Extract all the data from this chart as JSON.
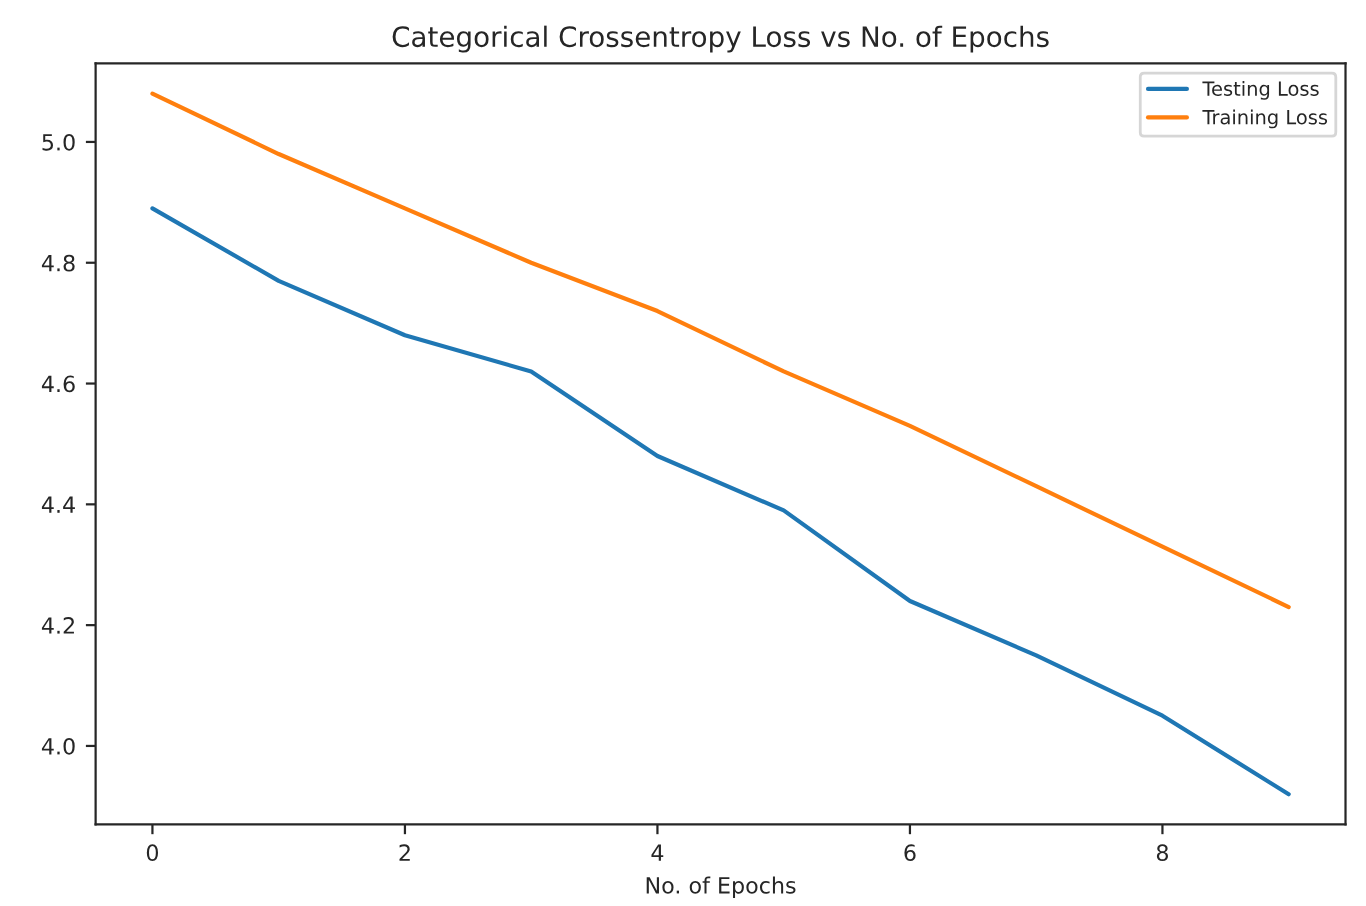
{
  "chart_data": {
    "type": "line",
    "title": "Categorical Crossentropy Loss vs No. of Epochs",
    "xlabel": "No. of Epochs",
    "x": [
      0,
      1,
      2,
      3,
      4,
      5,
      6,
      7,
      8,
      9
    ],
    "series": [
      {
        "name": "Testing Loss",
        "color": "#1f77b4",
        "values": [
          4.89,
          4.77,
          4.68,
          4.62,
          4.48,
          4.39,
          4.24,
          4.15,
          4.05,
          3.92
        ]
      },
      {
        "name": "Training Loss",
        "color": "#ff7f0e",
        "values": [
          5.08,
          4.98,
          4.89,
          4.8,
          4.72,
          4.62,
          4.53,
          4.43,
          4.33,
          4.23
        ]
      }
    ],
    "xlim": [
      -0.45,
      9.45
    ],
    "xticks": [
      0,
      2,
      4,
      6,
      8
    ],
    "ylim": [
      3.87,
      5.13
    ],
    "yticks": [
      {
        "value": 4.0,
        "label": "4.0"
      },
      {
        "value": 4.2,
        "label": "4.2"
      },
      {
        "value": 4.4,
        "label": "4.4"
      },
      {
        "value": 4.6,
        "label": "4.6"
      },
      {
        "value": 4.8,
        "label": "4.8"
      },
      {
        "value": 5.0,
        "label": "5.0"
      }
    ],
    "grid": false,
    "legend": "top right",
    "line_style": "solid",
    "marker": "none"
  }
}
